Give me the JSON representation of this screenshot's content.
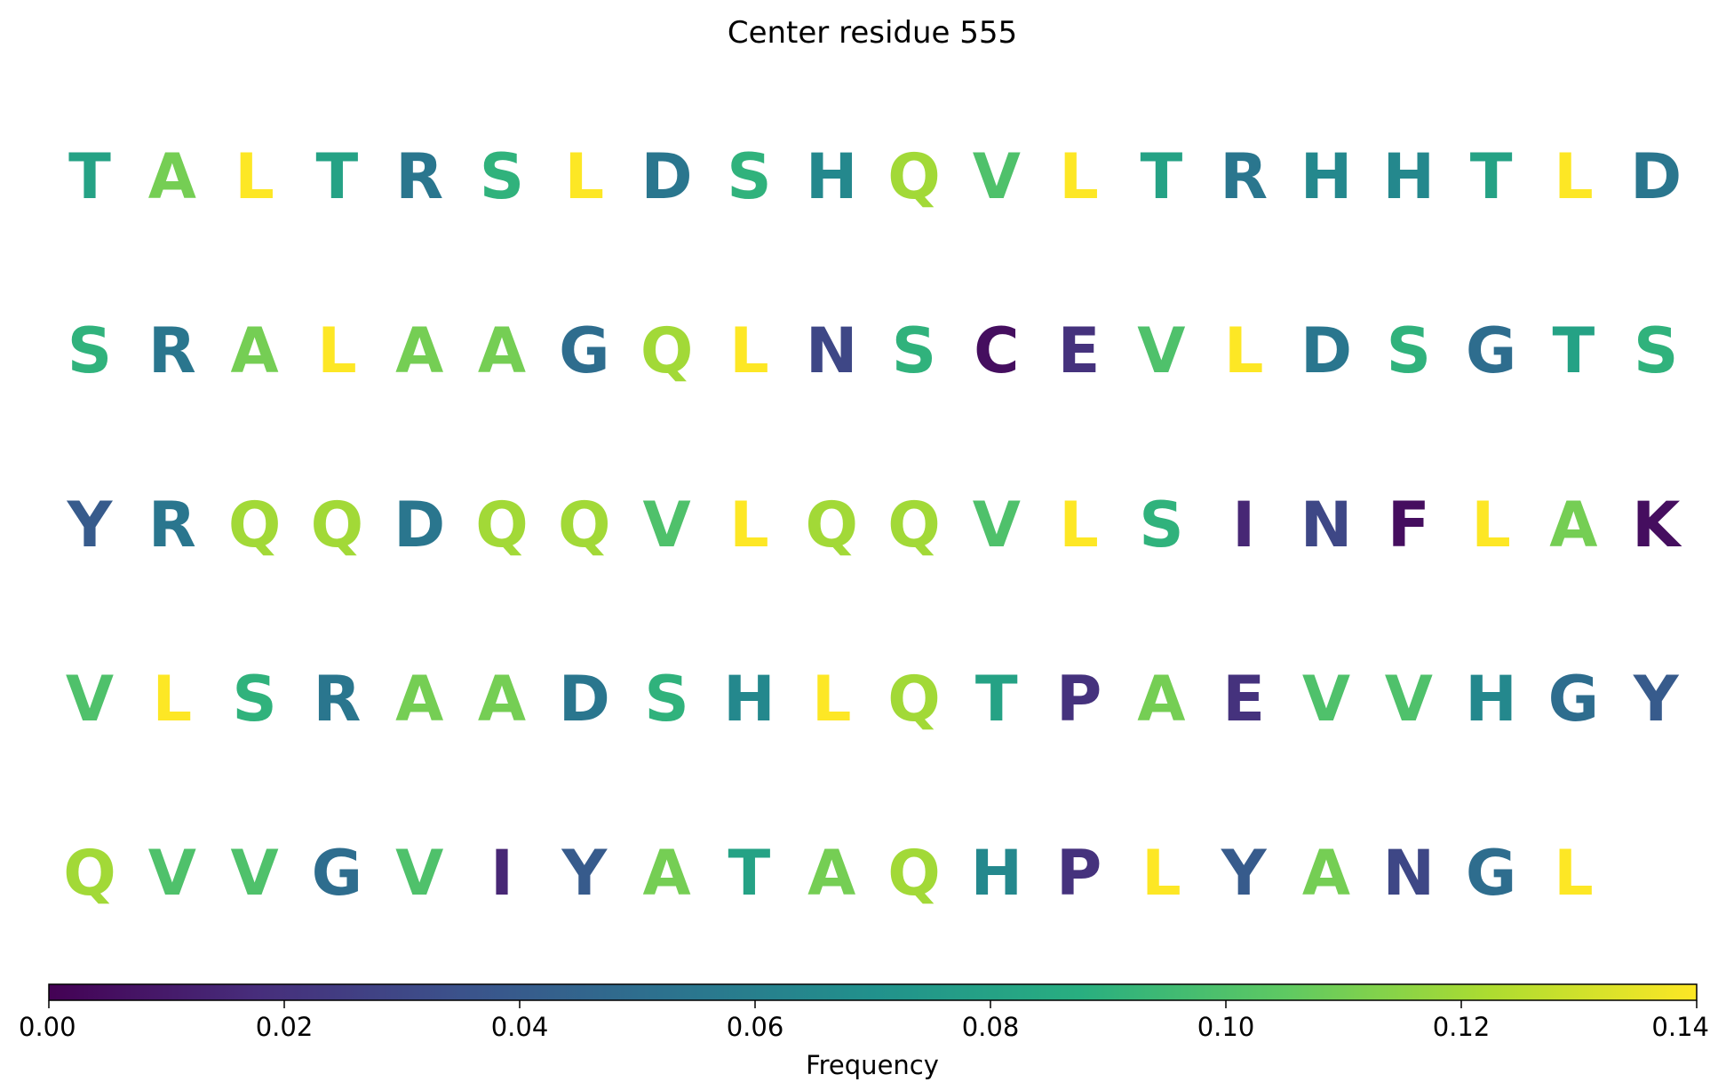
{
  "chart_data": {
    "type": "heatmap",
    "title": "Center residue 555",
    "rows": [
      {
        "residues": [
          "T",
          "A",
          "L",
          "T",
          "R",
          "S",
          "L",
          "D",
          "S",
          "H",
          "Q",
          "V",
          "L",
          "T",
          "R",
          "H",
          "H",
          "T",
          "L",
          "D"
        ],
        "frequencies": [
          0.08,
          0.11,
          0.14,
          0.08,
          0.055,
          0.09,
          0.14,
          0.055,
          0.09,
          0.065,
          0.12,
          0.1,
          0.14,
          0.08,
          0.055,
          0.065,
          0.065,
          0.08,
          0.14,
          0.055
        ]
      },
      {
        "residues": [
          "S",
          "R",
          "A",
          "L",
          "A",
          "A",
          "G",
          "Q",
          "L",
          "N",
          "S",
          "C",
          "E",
          "V",
          "L",
          "D",
          "S",
          "G",
          "T",
          "S"
        ],
        "frequencies": [
          0.09,
          0.055,
          0.11,
          0.14,
          0.11,
          0.11,
          0.05,
          0.12,
          0.14,
          0.03,
          0.09,
          0.005,
          0.02,
          0.1,
          0.14,
          0.055,
          0.09,
          0.05,
          0.08,
          0.09
        ]
      },
      {
        "residues": [
          "Y",
          "R",
          "Q",
          "Q",
          "D",
          "Q",
          "Q",
          "V",
          "L",
          "Q",
          "Q",
          "V",
          "L",
          "S",
          "I",
          "N",
          "F",
          "L",
          "A",
          "K"
        ],
        "frequencies": [
          0.04,
          0.055,
          0.12,
          0.12,
          0.055,
          0.12,
          0.12,
          0.1,
          0.14,
          0.12,
          0.12,
          0.1,
          0.14,
          0.09,
          0.015,
          0.03,
          0.005,
          0.14,
          0.11,
          0.005
        ]
      },
      {
        "residues": [
          "V",
          "L",
          "S",
          "R",
          "A",
          "A",
          "D",
          "S",
          "H",
          "L",
          "Q",
          "T",
          "P",
          "A",
          "E",
          "V",
          "V",
          "H",
          "G",
          "Y"
        ],
        "frequencies": [
          0.1,
          0.14,
          0.09,
          0.055,
          0.11,
          0.11,
          0.055,
          0.09,
          0.065,
          0.14,
          0.12,
          0.08,
          0.02,
          0.11,
          0.02,
          0.1,
          0.1,
          0.065,
          0.05,
          0.04
        ]
      },
      {
        "residues": [
          "Q",
          "V",
          "V",
          "G",
          "V",
          "I",
          "Y",
          "A",
          "T",
          "A",
          "Q",
          "H",
          "P",
          "L",
          "Y",
          "A",
          "N",
          "G",
          "L"
        ],
        "frequencies": [
          0.12,
          0.1,
          0.1,
          0.05,
          0.1,
          0.015,
          0.04,
          0.11,
          0.08,
          0.11,
          0.12,
          0.065,
          0.02,
          0.14,
          0.04,
          0.11,
          0.03,
          0.05,
          0.14
        ]
      }
    ],
    "colorbar": {
      "label": "Frequency",
      "range": [
        0,
        0.14
      ],
      "ticks": [
        0,
        0.02,
        0.04,
        0.06,
        0.08,
        0.1,
        0.12,
        0.14
      ],
      "tick_labels": [
        "0.00",
        "0.02",
        "0.04",
        "0.06",
        "0.08",
        "0.10",
        "0.12",
        "0.14"
      ],
      "colormap": "viridis"
    }
  }
}
